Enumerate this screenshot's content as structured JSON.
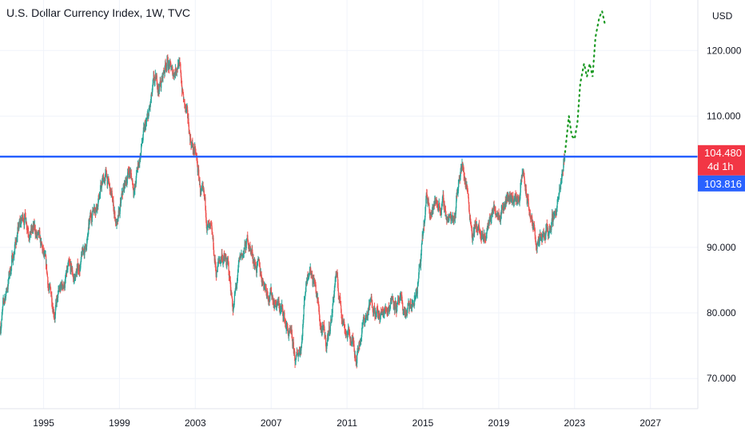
{
  "header": {
    "title": "U.S. Dollar Currency Index, 1W, TVC"
  },
  "chart_data": {
    "type": "candlestick",
    "title": "U.S. Dollar Currency Index, 1W, TVC",
    "currency": "USD",
    "xlim": [
      1992.7,
      2029.5
    ],
    "ylim": [
      65.4,
      127.7
    ],
    "x_ticks": [
      1995,
      1999,
      2003,
      2007,
      2011,
      2015,
      2019,
      2023,
      2027
    ],
    "y_ticks": [
      70,
      80,
      90,
      110,
      120
    ],
    "y_tick_labels": [
      "70.000",
      "80.000",
      "90.000",
      "110.000",
      "120.000"
    ],
    "up_color": "#26a69a",
    "down_color": "#ef5350",
    "grid": true,
    "price_path": [
      [
        1992.7,
        78
      ],
      [
        1993.2,
        86
      ],
      [
        1993.6,
        92
      ],
      [
        1994.0,
        95
      ],
      [
        1994.3,
        93
      ],
      [
        1994.6,
        92
      ],
      [
        1995.0,
        88
      ],
      [
        1995.3,
        83
      ],
      [
        1995.6,
        81
      ],
      [
        1996.0,
        84
      ],
      [
        1996.3,
        86
      ],
      [
        1996.6,
        85
      ],
      [
        1997.0,
        88
      ],
      [
        1997.3,
        91
      ],
      [
        1997.6,
        96
      ],
      [
        1998.0,
        99
      ],
      [
        1998.3,
        101
      ],
      [
        1998.6,
        97
      ],
      [
        1998.9,
        93
      ],
      [
        1999.2,
        98
      ],
      [
        1999.5,
        102
      ],
      [
        1999.8,
        99
      ],
      [
        2000.2,
        106
      ],
      [
        2000.5,
        109
      ],
      [
        2000.8,
        114
      ],
      [
        2001.2,
        115
      ],
      [
        2001.5,
        119
      ],
      [
        2001.8,
        116
      ],
      [
        2002.1,
        119
      ],
      [
        2002.4,
        112
      ],
      [
        2002.7,
        107
      ],
      [
        2003.0,
        104
      ],
      [
        2003.3,
        98
      ],
      [
        2003.6,
        94
      ],
      [
        2003.9,
        90
      ],
      [
        2004.1,
        86
      ],
      [
        2004.4,
        89
      ],
      [
        2004.7,
        87
      ],
      [
        2005.0,
        81
      ],
      [
        2005.4,
        88
      ],
      [
        2005.8,
        91
      ],
      [
        2006.0,
        89
      ],
      [
        2006.4,
        86
      ],
      [
        2006.8,
        84
      ],
      [
        2007.2,
        82
      ],
      [
        2007.6,
        80
      ],
      [
        2008.0,
        76
      ],
      [
        2008.3,
        72
      ],
      [
        2008.6,
        76
      ],
      [
        2008.8,
        84
      ],
      [
        2009.0,
        88
      ],
      [
        2009.3,
        85
      ],
      [
        2009.6,
        78
      ],
      [
        2009.9,
        75
      ],
      [
        2010.2,
        80
      ],
      [
        2010.4,
        86
      ],
      [
        2010.6,
        82
      ],
      [
        2010.9,
        78
      ],
      [
        2011.2,
        76
      ],
      [
        2011.5,
        74
      ],
      [
        2011.8,
        78
      ],
      [
        2012.1,
        80
      ],
      [
        2012.4,
        82
      ],
      [
        2012.7,
        79
      ],
      [
        2013.0,
        80
      ],
      [
        2013.4,
        83
      ],
      [
        2013.7,
        81
      ],
      [
        2014.0,
        80
      ],
      [
        2014.3,
        80
      ],
      [
        2014.6,
        82
      ],
      [
        2014.9,
        88
      ],
      [
        2015.2,
        97
      ],
      [
        2015.5,
        96
      ],
      [
        2015.8,
        97
      ],
      [
        2016.1,
        96
      ],
      [
        2016.4,
        94
      ],
      [
        2016.7,
        96
      ],
      [
        2017.0,
        103
      ],
      [
        2017.3,
        100
      ],
      [
        2017.6,
        93
      ],
      [
        2017.9,
        93
      ],
      [
        2018.2,
        90
      ],
      [
        2018.5,
        94
      ],
      [
        2018.8,
        96
      ],
      [
        2019.2,
        97
      ],
      [
        2019.6,
        98
      ],
      [
        2020.0,
        97
      ],
      [
        2020.3,
        101
      ],
      [
        2020.5,
        97
      ],
      [
        2020.8,
        93
      ],
      [
        2021.1,
        90
      ],
      [
        2021.4,
        91
      ],
      [
        2021.7,
        93
      ],
      [
        2022.0,
        96
      ],
      [
        2022.3,
        99
      ],
      [
        2022.5,
        104.5
      ]
    ],
    "forecast_path": [
      [
        2022.5,
        104.5
      ],
      [
        2022.7,
        110
      ],
      [
        2022.85,
        107
      ],
      [
        2023.0,
        106.5
      ],
      [
        2023.15,
        109
      ],
      [
        2023.3,
        115
      ],
      [
        2023.5,
        118
      ],
      [
        2023.65,
        116
      ],
      [
        2023.8,
        118
      ],
      [
        2023.95,
        116
      ],
      [
        2024.1,
        122
      ],
      [
        2024.3,
        125
      ],
      [
        2024.45,
        126
      ],
      [
        2024.6,
        124
      ]
    ],
    "forecast_color": "#1a9922",
    "horizontal_line": {
      "value": 103.816,
      "color": "#2962ff"
    },
    "price_axis_labels": {
      "currency_label": "USD",
      "last_price": "104.480",
      "countdown": "4d 1h",
      "line_price": "103.816",
      "last_price_value": 104.48,
      "line_price_value": 103.816,
      "last_price_color": "#f23645",
      "line_price_color": "#2962ff"
    }
  }
}
